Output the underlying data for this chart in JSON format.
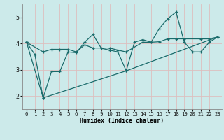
{
  "xlabel": "Humidex (Indice chaleur)",
  "background_color": "#cceaea",
  "grid_color": "#e8e8e8",
  "line_color": "#1a6b6b",
  "xlim": [
    -0.5,
    23.5
  ],
  "ylim": [
    1.5,
    5.5
  ],
  "yticks": [
    2,
    3,
    4,
    5
  ],
  "xticks": [
    0,
    1,
    2,
    3,
    4,
    5,
    6,
    7,
    8,
    9,
    10,
    11,
    12,
    13,
    14,
    15,
    16,
    17,
    18,
    19,
    20,
    21,
    22,
    23
  ],
  "line1_x": [
    0,
    1,
    2,
    3,
    4,
    5,
    6,
    7,
    8,
    9,
    10,
    11,
    12,
    13,
    14,
    15,
    16,
    17,
    18,
    19,
    20,
    21,
    22,
    23
  ],
  "line1_y": [
    4.05,
    3.58,
    1.93,
    2.93,
    2.93,
    3.68,
    3.65,
    4.05,
    4.35,
    3.82,
    3.75,
    3.68,
    2.96,
    4.05,
    4.15,
    4.05,
    4.58,
    4.95,
    5.2,
    4.05,
    3.68,
    3.68,
    4.05,
    4.25
  ],
  "line2_x": [
    0,
    2,
    3,
    4,
    5,
    6,
    7,
    8,
    10,
    11,
    12,
    14,
    15,
    16,
    17,
    18,
    19,
    21,
    22,
    23
  ],
  "line2_y": [
    4.05,
    3.68,
    3.78,
    3.78,
    3.78,
    3.68,
    3.95,
    3.83,
    3.83,
    3.75,
    3.68,
    4.05,
    4.05,
    4.07,
    4.18,
    4.18,
    4.18,
    4.18,
    4.18,
    4.25
  ],
  "line3_x": [
    0,
    2,
    12,
    23
  ],
  "line3_y": [
    4.05,
    1.93,
    2.96,
    4.25
  ]
}
